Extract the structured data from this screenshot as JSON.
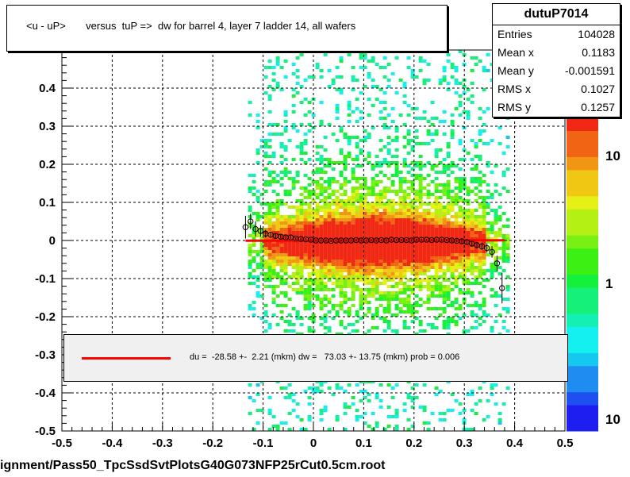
{
  "title": "<u - uP>       versus  tuP =>  dw for barrel 4, layer 7 ladder 14, all wafers",
  "footer": "ignment/Pass50_TpcSsdSvtPlotsG40G073NFP25rCut0.5cm.root",
  "stats": {
    "name": "dutuP7014",
    "rows": [
      {
        "label": "Entries",
        "value": "104028"
      },
      {
        "label": "Mean x",
        "value": "0.1183"
      },
      {
        "label": "Mean y",
        "value": "-0.001591"
      },
      {
        "label": "RMS x",
        "value": "0.1027"
      },
      {
        "label": "RMS y",
        "value": "0.1257"
      }
    ]
  },
  "legend": {
    "text": "du =  -28.58 +-  2.21 (mkm) dw =   73.03 +- 13.75 (mkm) prob = 0.006",
    "line_color": "#ff0000"
  },
  "chart_data": {
    "type": "heatmap",
    "xlim": [
      -0.5,
      0.5
    ],
    "ylim": [
      -0.5,
      0.5
    ],
    "x_ticks": [
      "-0.5",
      "-0.4",
      "-0.3",
      "-0.2",
      "-0.1",
      "0",
      "0.1",
      "0.2",
      "0.3",
      "0.4",
      "0.5"
    ],
    "y_ticks": [
      "-0.5",
      "-0.4",
      "-0.3",
      "-0.2",
      "-0.1",
      "0",
      "0.1",
      "0.2",
      "0.3",
      "0.4"
    ],
    "grid": true,
    "colorbar_labels": [
      "10",
      "1",
      "10"
    ],
    "fit_line": {
      "x": [
        -0.135,
        0.38
      ],
      "y": [
        -0.0006,
        0.0005
      ],
      "color": "#ff0000"
    },
    "profile_points": [
      {
        "x": -0.135,
        "y": 0.035,
        "err": 0.03
      },
      {
        "x": -0.125,
        "y": 0.05,
        "err": 0.02
      },
      {
        "x": -0.115,
        "y": 0.03,
        "err": 0.02
      },
      {
        "x": -0.105,
        "y": 0.025,
        "err": 0.015
      },
      {
        "x": -0.095,
        "y": 0.018,
        "err": 0.01
      },
      {
        "x": -0.085,
        "y": 0.015,
        "err": 0.008
      },
      {
        "x": -0.075,
        "y": 0.012,
        "err": 0.006
      },
      {
        "x": -0.065,
        "y": 0.01,
        "err": 0.005
      },
      {
        "x": -0.055,
        "y": 0.008,
        "err": 0.004
      },
      {
        "x": -0.045,
        "y": 0.008,
        "err": 0.004
      },
      {
        "x": -0.035,
        "y": 0.005,
        "err": 0.003
      },
      {
        "x": -0.025,
        "y": 0.004,
        "err": 0.003
      },
      {
        "x": -0.015,
        "y": 0.003,
        "err": 0.003
      },
      {
        "x": -0.005,
        "y": 0.002,
        "err": 0.003
      },
      {
        "x": 0.005,
        "y": 0.0,
        "err": 0.003
      },
      {
        "x": 0.015,
        "y": 0.0,
        "err": 0.003
      },
      {
        "x": 0.025,
        "y": 0.0,
        "err": 0.003
      },
      {
        "x": 0.035,
        "y": -0.001,
        "err": 0.003
      },
      {
        "x": 0.045,
        "y": 0.0,
        "err": 0.003
      },
      {
        "x": 0.055,
        "y": 0.0,
        "err": 0.003
      },
      {
        "x": 0.065,
        "y": 0.0,
        "err": 0.003
      },
      {
        "x": 0.075,
        "y": 0.0,
        "err": 0.003
      },
      {
        "x": 0.085,
        "y": 0.001,
        "err": 0.003
      },
      {
        "x": 0.095,
        "y": 0.0,
        "err": 0.003
      },
      {
        "x": 0.105,
        "y": 0.0,
        "err": 0.003
      },
      {
        "x": 0.115,
        "y": 0.001,
        "err": 0.003
      },
      {
        "x": 0.125,
        "y": 0.0,
        "err": 0.003
      },
      {
        "x": 0.135,
        "y": 0.001,
        "err": 0.003
      },
      {
        "x": 0.145,
        "y": 0.0,
        "err": 0.003
      },
      {
        "x": 0.155,
        "y": 0.002,
        "err": 0.003
      },
      {
        "x": 0.165,
        "y": 0.001,
        "err": 0.003
      },
      {
        "x": 0.175,
        "y": 0.001,
        "err": 0.003
      },
      {
        "x": 0.185,
        "y": 0.001,
        "err": 0.003
      },
      {
        "x": 0.195,
        "y": 0.0,
        "err": 0.003
      },
      {
        "x": 0.205,
        "y": 0.002,
        "err": 0.003
      },
      {
        "x": 0.215,
        "y": 0.002,
        "err": 0.003
      },
      {
        "x": 0.225,
        "y": 0.002,
        "err": 0.003
      },
      {
        "x": 0.235,
        "y": 0.001,
        "err": 0.003
      },
      {
        "x": 0.245,
        "y": 0.002,
        "err": 0.003
      },
      {
        "x": 0.255,
        "y": 0.002,
        "err": 0.003
      },
      {
        "x": 0.265,
        "y": 0.001,
        "err": 0.003
      },
      {
        "x": 0.275,
        "y": 0.0,
        "err": 0.004
      },
      {
        "x": 0.285,
        "y": -0.001,
        "err": 0.004
      },
      {
        "x": 0.295,
        "y": -0.002,
        "err": 0.005
      },
      {
        "x": 0.305,
        "y": -0.004,
        "err": 0.005
      },
      {
        "x": 0.315,
        "y": -0.008,
        "err": 0.006
      },
      {
        "x": 0.325,
        "y": -0.012,
        "err": 0.008
      },
      {
        "x": 0.335,
        "y": -0.015,
        "err": 0.01
      },
      {
        "x": 0.345,
        "y": -0.02,
        "err": 0.012
      },
      {
        "x": 0.355,
        "y": -0.03,
        "err": 0.015
      },
      {
        "x": 0.365,
        "y": -0.06,
        "err": 0.02
      },
      {
        "x": 0.375,
        "y": -0.125,
        "err": 0.04
      }
    ]
  }
}
